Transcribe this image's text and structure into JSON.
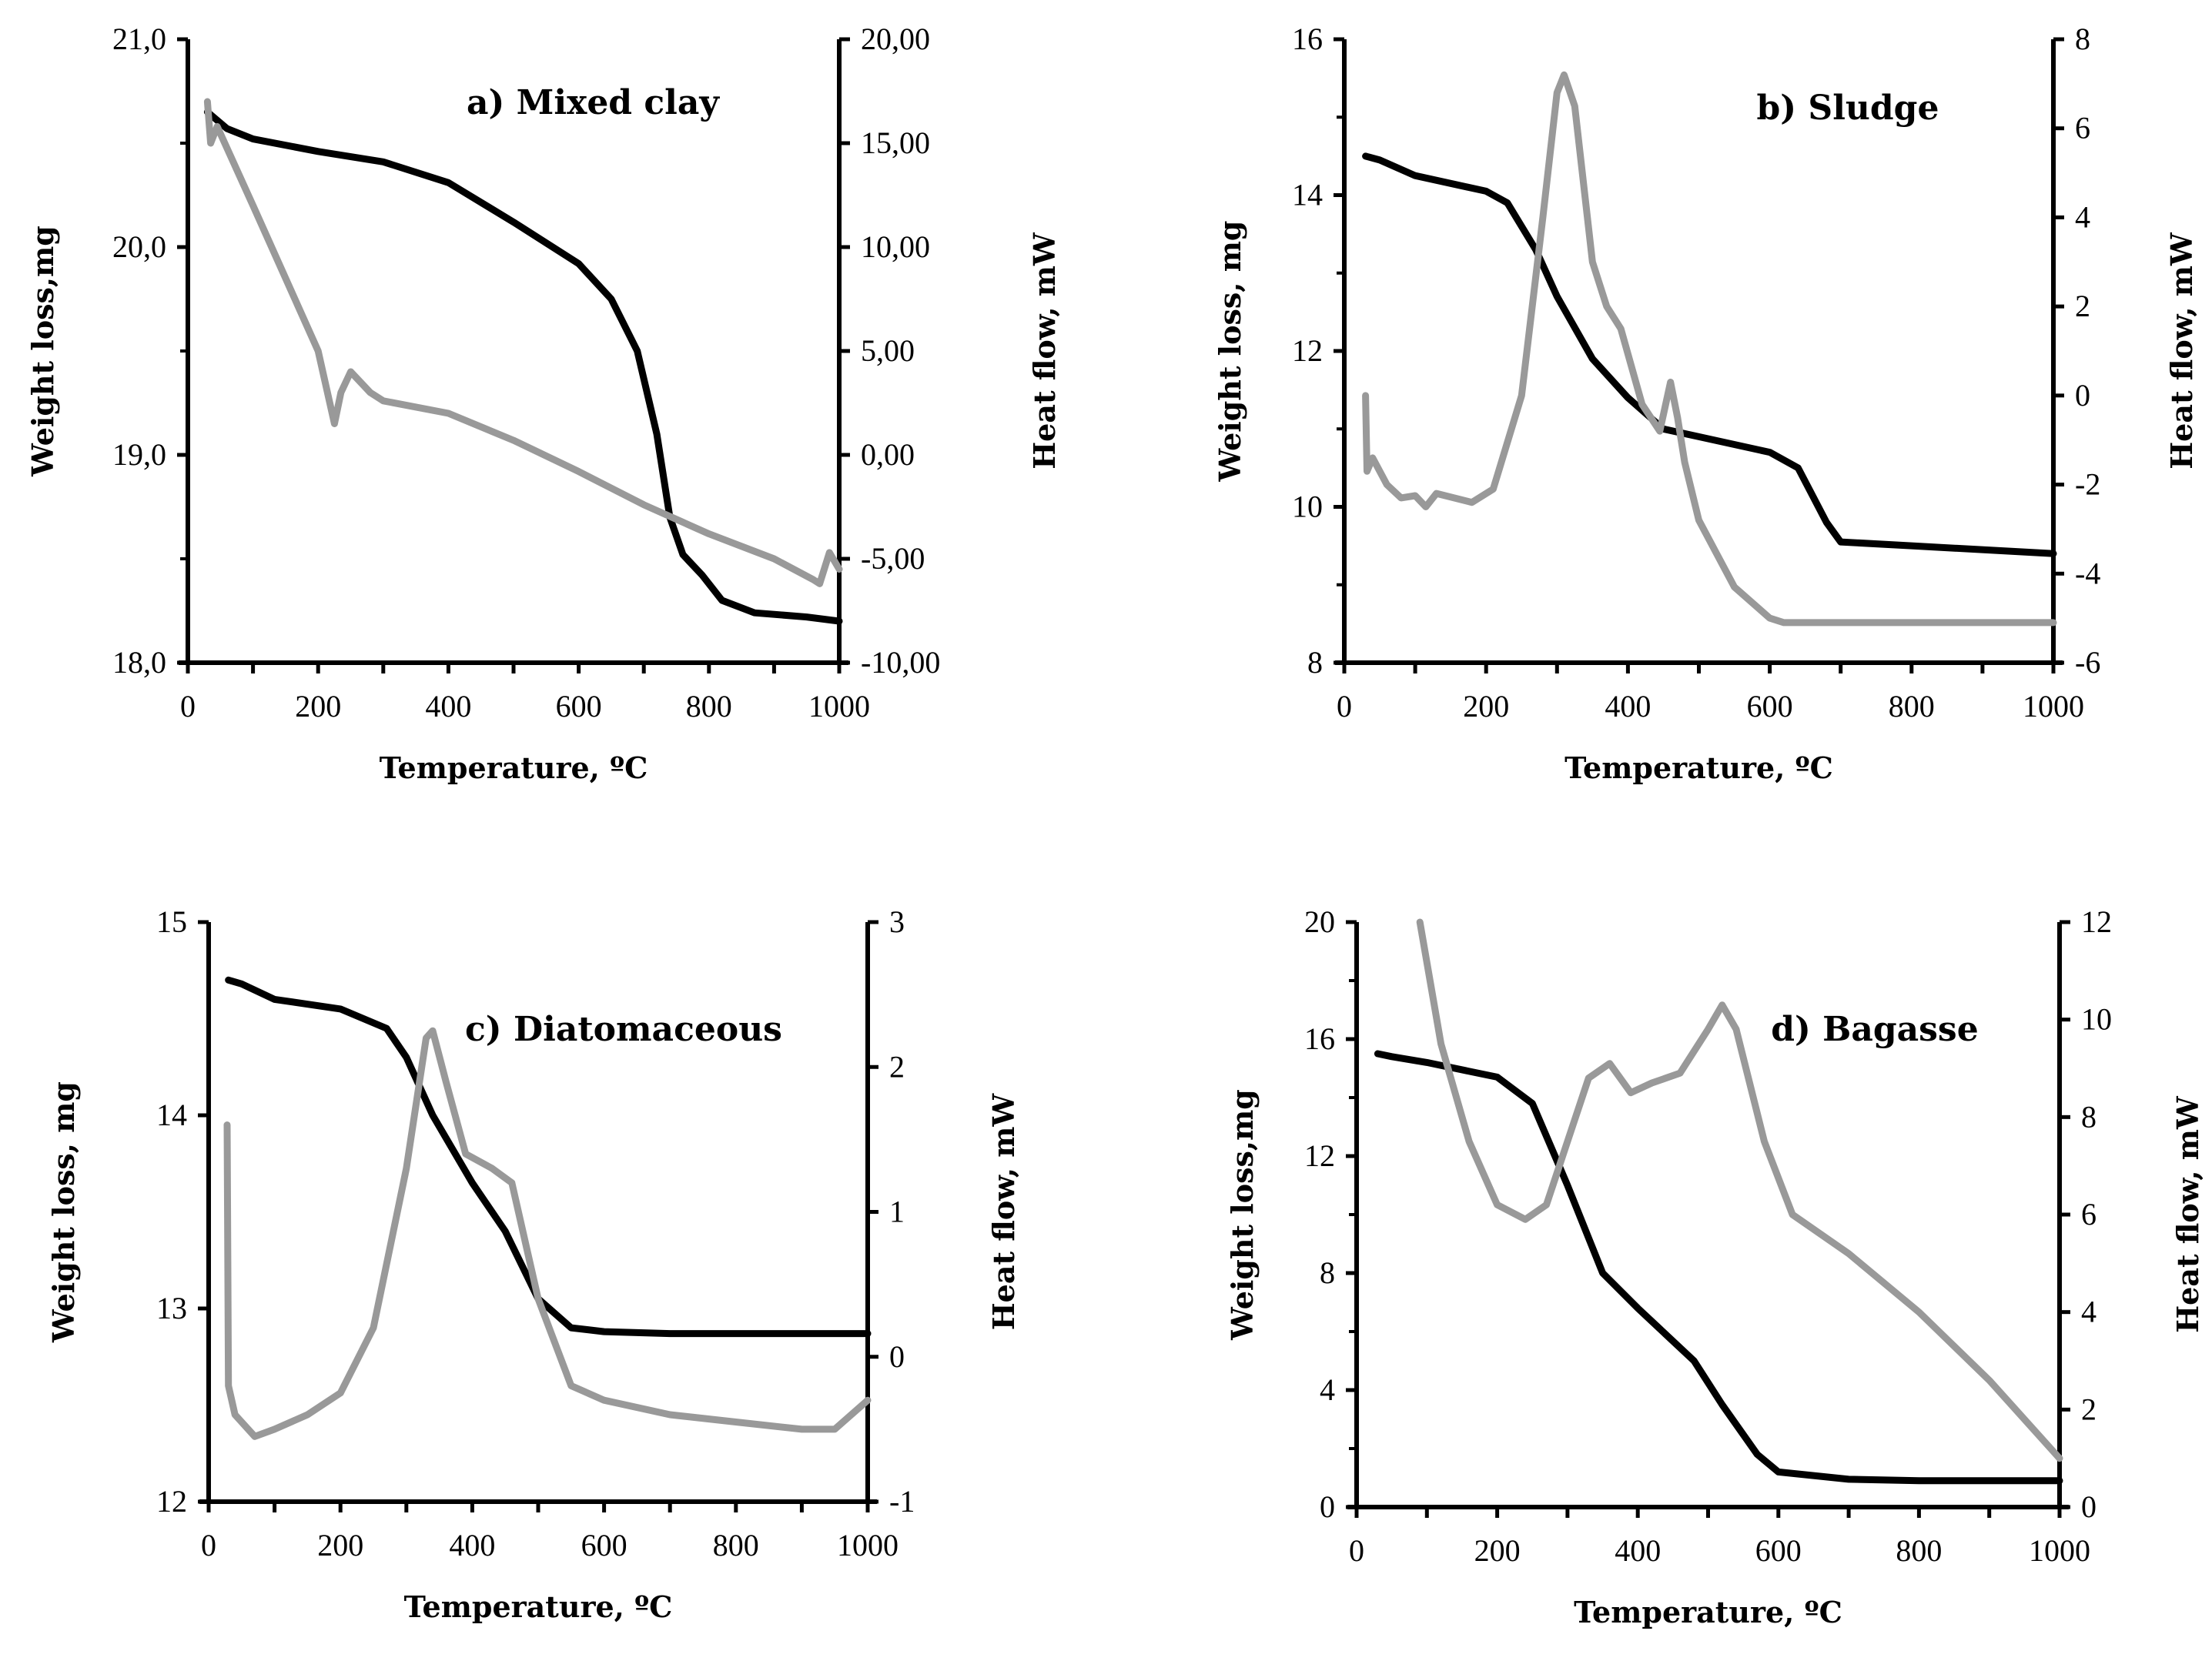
{
  "colors": {
    "weight": "#000000",
    "heat": "#999999",
    "axis": "#000000"
  },
  "chart_data": [
    {
      "type": "line",
      "title": "a) Mixed clay",
      "xlabel": "Temperature, ºC",
      "ylabel": "Weight loss,mg",
      "y2label": "Heat flow, mW",
      "xlim": [
        0,
        1000
      ],
      "xticks": [
        0,
        200,
        400,
        600,
        800,
        1000
      ],
      "ylim": [
        18,
        21
      ],
      "yticks": [
        "18,0",
        "19,0",
        "20,0",
        "21,0"
      ],
      "ytick_values": [
        18,
        19,
        20,
        21
      ],
      "yminor": 0.5,
      "y2lim": [
        -10,
        20
      ],
      "y2ticks": [
        "-10,00",
        "-5,00",
        "0,00",
        "5,00",
        "10,00",
        "15,00",
        "20,00"
      ],
      "y2tick_values": [
        -10,
        -5,
        0,
        5,
        10,
        15,
        20
      ],
      "series": [
        {
          "name": "Weight loss",
          "axis": "left",
          "points": [
            [
              30,
              20.65
            ],
            [
              60,
              20.57
            ],
            [
              100,
              20.52
            ],
            [
              200,
              20.46
            ],
            [
              300,
              20.41
            ],
            [
              400,
              20.31
            ],
            [
              500,
              20.12
            ],
            [
              600,
              19.92
            ],
            [
              650,
              19.75
            ],
            [
              690,
              19.5
            ],
            [
              720,
              19.1
            ],
            [
              740,
              18.7
            ],
            [
              760,
              18.52
            ],
            [
              790,
              18.42
            ],
            [
              820,
              18.3
            ],
            [
              870,
              18.24
            ],
            [
              950,
              18.22
            ],
            [
              1000,
              18.2
            ]
          ]
        },
        {
          "name": "Heat flow",
          "axis": "right",
          "points": [
            [
              30,
              17
            ],
            [
              35,
              15
            ],
            [
              45,
              15.8
            ],
            [
              100,
              12
            ],
            [
              200,
              5
            ],
            [
              225,
              1.5
            ],
            [
              235,
              3
            ],
            [
              250,
              4
            ],
            [
              280,
              3
            ],
            [
              300,
              2.6
            ],
            [
              400,
              2
            ],
            [
              500,
              0.7
            ],
            [
              600,
              -0.8
            ],
            [
              700,
              -2.4
            ],
            [
              800,
              -3.8
            ],
            [
              900,
              -5
            ],
            [
              960,
              -6
            ],
            [
              970,
              -6.2
            ],
            [
              985,
              -4.7
            ],
            [
              1000,
              -5.5
            ]
          ]
        }
      ]
    },
    {
      "type": "line",
      "title": "b) Sludge",
      "xlabel": "Temperature, ºC",
      "ylabel": "Weight loss, mg",
      "y2label": "Heat flow, mW",
      "xlim": [
        0,
        1000
      ],
      "xticks": [
        0,
        200,
        400,
        600,
        800,
        1000
      ],
      "ylim": [
        8,
        16
      ],
      "yticks": [
        "8",
        "10",
        "12",
        "14",
        "16"
      ],
      "ytick_values": [
        8,
        10,
        12,
        14,
        16
      ],
      "yminor": 1,
      "y2lim": [
        -6,
        8
      ],
      "y2ticks": [
        "-6",
        "-4",
        "-2",
        "0",
        "2",
        "4",
        "6",
        "8"
      ],
      "y2tick_values": [
        -6,
        -4,
        -2,
        0,
        2,
        4,
        6,
        8
      ],
      "series": [
        {
          "name": "Weight loss",
          "axis": "left",
          "points": [
            [
              30,
              14.5
            ],
            [
              50,
              14.45
            ],
            [
              100,
              14.25
            ],
            [
              200,
              14.05
            ],
            [
              230,
              13.9
            ],
            [
              270,
              13.3
            ],
            [
              300,
              12.7
            ],
            [
              350,
              11.9
            ],
            [
              400,
              11.4
            ],
            [
              450,
              11.0
            ],
            [
              500,
              10.9
            ],
            [
              600,
              10.7
            ],
            [
              640,
              10.5
            ],
            [
              680,
              9.8
            ],
            [
              700,
              9.55
            ],
            [
              800,
              9.5
            ],
            [
              1000,
              9.4
            ]
          ]
        },
        {
          "name": "Heat flow",
          "axis": "right",
          "points": [
            [
              30,
              0
            ],
            [
              32,
              -1.7
            ],
            [
              40,
              -1.4
            ],
            [
              60,
              -2
            ],
            [
              80,
              -2.3
            ],
            [
              100,
              -2.25
            ],
            [
              115,
              -2.5
            ],
            [
              130,
              -2.2
            ],
            [
              180,
              -2.4
            ],
            [
              210,
              -2.1
            ],
            [
              250,
              0
            ],
            [
              280,
              4
            ],
            [
              300,
              6.8
            ],
            [
              310,
              7.2
            ],
            [
              325,
              6.5
            ],
            [
              350,
              3
            ],
            [
              370,
              2
            ],
            [
              390,
              1.5
            ],
            [
              420,
              -0.2
            ],
            [
              445,
              -0.8
            ],
            [
              460,
              0.3
            ],
            [
              470,
              -0.5
            ],
            [
              480,
              -1.5
            ],
            [
              500,
              -2.8
            ],
            [
              550,
              -4.3
            ],
            [
              600,
              -5
            ],
            [
              620,
              -5.1
            ],
            [
              1000,
              -5.1
            ]
          ]
        }
      ]
    },
    {
      "type": "line",
      "title": "c) Diatomaceous",
      "xlabel": "Temperature, ºC",
      "ylabel": "Weight loss, mg",
      "y2label": "Heat flow, mW",
      "xlim": [
        0,
        1000
      ],
      "xticks": [
        0,
        200,
        400,
        600,
        800,
        1000
      ],
      "ylim": [
        12,
        15
      ],
      "yticks": [
        "12",
        "13",
        "14",
        "15"
      ],
      "ytick_values": [
        12,
        13,
        14,
        15
      ],
      "yminor": 0,
      "y2lim": [
        -1,
        3
      ],
      "y2ticks": [
        "-1",
        "0",
        "1",
        "2",
        "3"
      ],
      "y2tick_values": [
        -1,
        0,
        1,
        2,
        3
      ],
      "series": [
        {
          "name": "Weight loss",
          "axis": "left",
          "points": [
            [
              30,
              14.7
            ],
            [
              50,
              14.68
            ],
            [
              100,
              14.6
            ],
            [
              200,
              14.55
            ],
            [
              270,
              14.45
            ],
            [
              300,
              14.3
            ],
            [
              340,
              14.0
            ],
            [
              400,
              13.65
            ],
            [
              450,
              13.4
            ],
            [
              500,
              13.05
            ],
            [
              550,
              12.9
            ],
            [
              600,
              12.88
            ],
            [
              700,
              12.87
            ],
            [
              1000,
              12.87
            ]
          ]
        },
        {
          "name": "Heat flow",
          "axis": "right",
          "points": [
            [
              28,
              1.6
            ],
            [
              30,
              -0.2
            ],
            [
              40,
              -0.4
            ],
            [
              70,
              -0.55
            ],
            [
              100,
              -0.5
            ],
            [
              150,
              -0.4
            ],
            [
              200,
              -0.25
            ],
            [
              250,
              0.2
            ],
            [
              300,
              1.3
            ],
            [
              330,
              2.2
            ],
            [
              340,
              2.25
            ],
            [
              360,
              1.9
            ],
            [
              390,
              1.4
            ],
            [
              430,
              1.3
            ],
            [
              460,
              1.2
            ],
            [
              500,
              0.4
            ],
            [
              550,
              -0.2
            ],
            [
              600,
              -0.3
            ],
            [
              700,
              -0.4
            ],
            [
              800,
              -0.45
            ],
            [
              900,
              -0.5
            ],
            [
              950,
              -0.5
            ],
            [
              1000,
              -0.3
            ]
          ]
        }
      ]
    },
    {
      "type": "line",
      "title": "d) Bagasse",
      "xlabel": "Temperature, ºC",
      "ylabel": "Weight loss,mg",
      "y2label": "Heat flow, mW",
      "xlim": [
        0,
        1000
      ],
      "xticks": [
        0,
        200,
        400,
        600,
        800,
        1000
      ],
      "ylim": [
        0,
        20
      ],
      "yticks": [
        "0",
        "4",
        "8",
        "12",
        "16",
        "20"
      ],
      "ytick_values": [
        0,
        4,
        8,
        12,
        16,
        20
      ],
      "yminor": 2,
      "y2lim": [
        0,
        12
      ],
      "y2ticks": [
        "0",
        "2",
        "4",
        "6",
        "8",
        "10",
        "12"
      ],
      "y2tick_values": [
        0,
        2,
        4,
        6,
        8,
        10,
        12
      ],
      "series": [
        {
          "name": "Weight loss",
          "axis": "left",
          "points": [
            [
              30,
              15.5
            ],
            [
              50,
              15.4
            ],
            [
              100,
              15.2
            ],
            [
              200,
              14.7
            ],
            [
              250,
              13.8
            ],
            [
              300,
              11
            ],
            [
              350,
              8
            ],
            [
              400,
              6.8
            ],
            [
              480,
              5
            ],
            [
              520,
              3.5
            ],
            [
              570,
              1.8
            ],
            [
              600,
              1.2
            ],
            [
              700,
              0.95
            ],
            [
              800,
              0.9
            ],
            [
              1000,
              0.9
            ]
          ]
        },
        {
          "name": "Heat flow",
          "axis": "right",
          "points": [
            [
              90,
              12
            ],
            [
              120,
              9.5
            ],
            [
              160,
              7.5
            ],
            [
              200,
              6.2
            ],
            [
              240,
              5.9
            ],
            [
              270,
              6.2
            ],
            [
              300,
              7.5
            ],
            [
              330,
              8.8
            ],
            [
              360,
              9.1
            ],
            [
              390,
              8.5
            ],
            [
              420,
              8.7
            ],
            [
              460,
              8.9
            ],
            [
              500,
              9.8
            ],
            [
              520,
              10.3
            ],
            [
              540,
              9.8
            ],
            [
              580,
              7.5
            ],
            [
              620,
              6.0
            ],
            [
              700,
              5.2
            ],
            [
              800,
              4.0
            ],
            [
              900,
              2.6
            ],
            [
              1000,
              1.0
            ]
          ]
        }
      ]
    }
  ]
}
